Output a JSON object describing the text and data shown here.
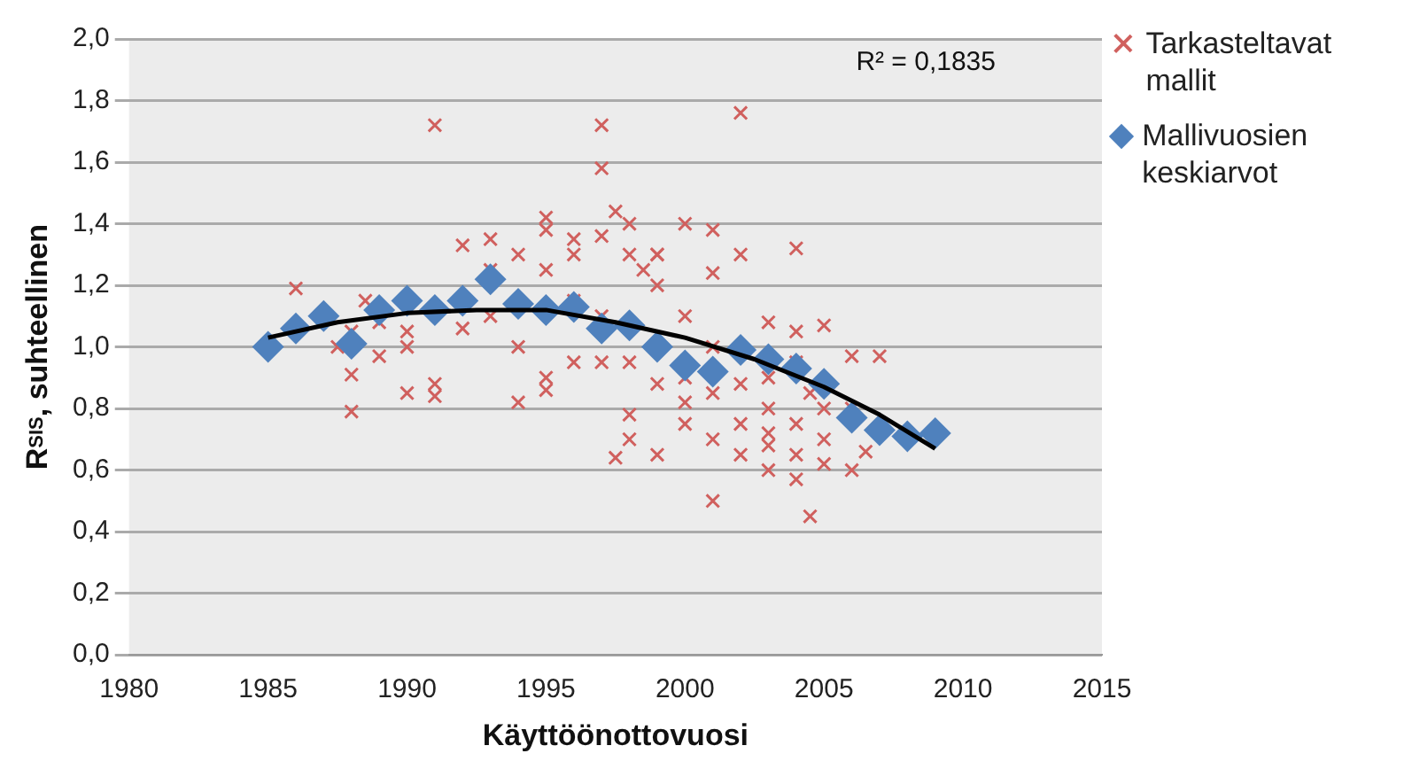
{
  "chart_data": {
    "type": "scatter",
    "xlabel": "Käyttöönottovuosi",
    "ylabel": "R$_{SIS}$, suhteellinen",
    "xlim": [
      1980,
      2015
    ],
    "xticks": [
      1980,
      1985,
      1990,
      1995,
      2000,
      2005,
      2010,
      2015
    ],
    "ylim": [
      0,
      2
    ],
    "yticks": [
      {
        "value": 0,
        "label": "0,0"
      },
      {
        "value": 0.2,
        "label": "0,2"
      },
      {
        "value": 0.4,
        "label": "0,4"
      },
      {
        "value": 0.6,
        "label": "0,6"
      },
      {
        "value": 0.8,
        "label": "0,8"
      },
      {
        "value": 1,
        "label": "1,0"
      },
      {
        "value": 1.2,
        "label": "1,2"
      },
      {
        "value": 1.4,
        "label": "1,4"
      },
      {
        "value": 1.6,
        "label": "1,6"
      },
      {
        "value": 1.8,
        "label": "1,8"
      },
      {
        "value": 2,
        "label": "2,0"
      }
    ],
    "grid": "y",
    "legend": "right",
    "annotations": [
      "R² = 0,1835"
    ],
    "series": [
      {
        "name": "Tarkasteltavat mallit",
        "type": "scatter",
        "marker": "cross",
        "color": "#d0605e",
        "x": [
          1986,
          1988,
          1988,
          1988.5,
          1988,
          1989,
          1990,
          1990,
          1990,
          1991,
          1991,
          1991,
          1992,
          1992,
          1993,
          1993,
          1993,
          1994,
          1994,
          1994,
          1995,
          1995,
          1995,
          1995,
          1995,
          1996,
          1996,
          1996,
          1997,
          1997,
          1997,
          1997,
          1997,
          1997.5,
          1997.5,
          1998,
          1998,
          1998,
          1998,
          1998,
          1998.5,
          1999,
          1999,
          1999,
          1999,
          1999,
          2000,
          2000,
          2000,
          2000,
          2000,
          2001,
          2001,
          2001,
          2001,
          2001,
          2001,
          2002,
          2002,
          2002,
          2002,
          2002,
          2003,
          2003,
          2003,
          2003,
          2003,
          2003,
          2004,
          2004,
          2004,
          2004,
          2004,
          2004,
          2004.5,
          2004.5,
          2005,
          2005,
          2005,
          2005,
          2006,
          2006,
          2006,
          2006.5,
          2007,
          1987.5,
          1989,
          1996
        ],
        "values": [
          1.19,
          0.79,
          0.91,
          1.15,
          1.05,
          0.97,
          0.85,
          1.05,
          1.0,
          0.84,
          0.88,
          1.72,
          1.33,
          1.06,
          1.35,
          1.1,
          1.25,
          0.82,
          1.3,
          1.0,
          0.86,
          0.9,
          1.38,
          1.42,
          1.25,
          1.3,
          0.95,
          1.35,
          1.72,
          1.58,
          1.36,
          1.1,
          0.95,
          1.44,
          0.64,
          1.4,
          1.3,
          0.78,
          0.7,
          0.95,
          1.25,
          1.3,
          1.3,
          0.88,
          0.65,
          1.2,
          1.4,
          1.1,
          0.75,
          0.82,
          0.9,
          1.38,
          1.24,
          1.0,
          0.7,
          0.5,
          0.85,
          1.76,
          1.3,
          0.88,
          0.75,
          0.65,
          1.08,
          0.9,
          0.72,
          0.68,
          0.6,
          0.8,
          1.32,
          1.05,
          0.95,
          0.75,
          0.57,
          0.65,
          0.45,
          0.85,
          1.07,
          0.8,
          0.7,
          0.62,
          0.6,
          0.8,
          0.97,
          0.66,
          0.97,
          1.0,
          1.08,
          1.15
        ]
      },
      {
        "name": "Mallivuosien keskiarvot",
        "type": "scatter",
        "marker": "diamond",
        "color": "#4f81bd",
        "x": [
          1985,
          1986,
          1987,
          1988,
          1989,
          1990,
          1991,
          1992,
          1993,
          1994,
          1995,
          1996,
          1997,
          1998,
          1999,
          2000,
          2001,
          2002,
          2003,
          2004,
          2005,
          2006,
          2007,
          2008,
          2009
        ],
        "values": [
          1.0,
          1.06,
          1.1,
          1.01,
          1.12,
          1.15,
          1.12,
          1.15,
          1.22,
          1.14,
          1.12,
          1.13,
          1.06,
          1.07,
          1.0,
          0.94,
          0.92,
          0.99,
          0.96,
          0.93,
          0.88,
          0.77,
          0.73,
          0.71,
          0.72
        ]
      },
      {
        "type": "line",
        "marker": "none",
        "line_style": "solid",
        "color": "#000000",
        "x": [
          1985,
          1987.5,
          1990,
          1992.5,
          1995,
          1997.5,
          2000,
          2002.5,
          2005,
          2007,
          2009
        ],
        "values": [
          1.03,
          1.08,
          1.11,
          1.12,
          1.12,
          1.08,
          1.03,
          0.96,
          0.87,
          0.78,
          0.67
        ]
      }
    ]
  }
}
